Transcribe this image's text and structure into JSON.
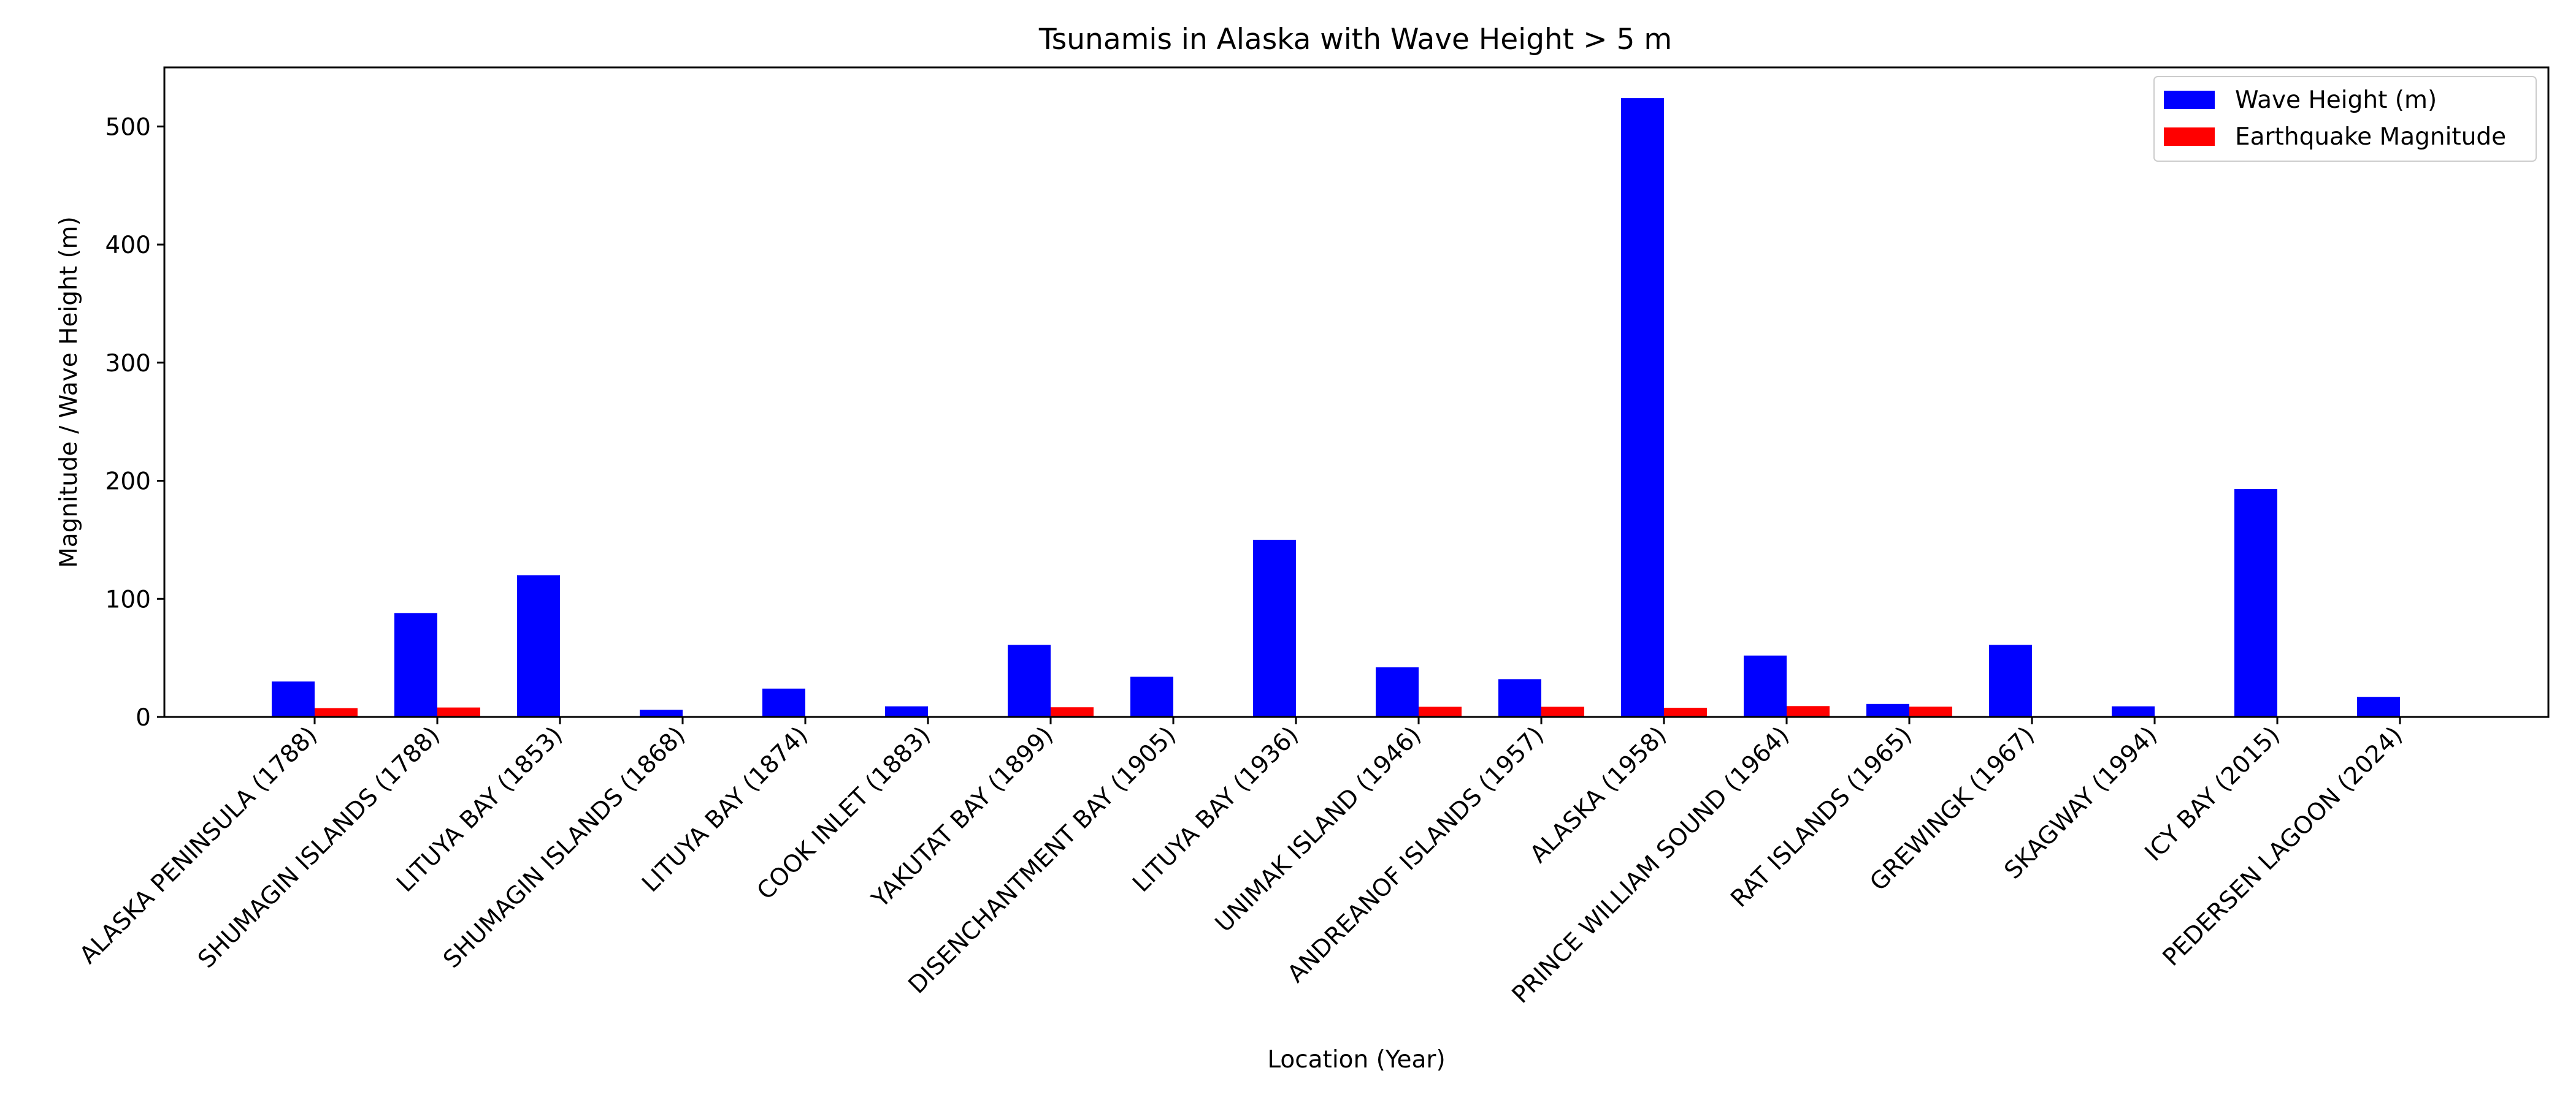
{
  "chart_data": {
    "type": "bar",
    "title": "Tsunamis in Alaska with Wave Height > 5 m",
    "xlabel": "Location (Year)",
    "ylabel": "Magnitude / Wave Height (m)",
    "ylim": [
      0,
      550
    ],
    "yticks": [
      0,
      100,
      200,
      300,
      400,
      500
    ],
    "categories": [
      "ALASKA PENINSULA (1788)",
      "SHUMAGIN ISLANDS (1788)",
      "LITUYA BAY (1853)",
      "SHUMAGIN ISLANDS (1868)",
      "LITUYA BAY (1874)",
      "COOK INLET (1883)",
      "YAKUTAT BAY (1899)",
      "DISENCHANTMENT BAY (1905)",
      "LITUYA BAY (1936)",
      "UNIMAK ISLAND (1946)",
      "ANDREANOF ISLANDS (1957)",
      "ALASKA (1958)",
      "PRINCE WILLIAM SOUND (1964)",
      "RAT ISLANDS (1965)",
      "GREWINGK (1967)",
      "SKAGWAY (1994)",
      "ICY BAY (2015)",
      "PEDERSEN LAGOON (2024)"
    ],
    "series": [
      {
        "name": "Wave Height (m)",
        "color": "#0000ff",
        "values": [
          30,
          88,
          120,
          6,
          24,
          9,
          61,
          34,
          150,
          42,
          32,
          524,
          52,
          11,
          61,
          9,
          193,
          17
        ]
      },
      {
        "name": "Earthquake Magnitude",
        "color": "#ff0000",
        "values": [
          7.5,
          8.0,
          null,
          null,
          null,
          null,
          8.2,
          null,
          null,
          8.6,
          8.6,
          7.8,
          9.2,
          8.7,
          null,
          null,
          null,
          null
        ]
      }
    ],
    "legend_position": "top-right",
    "grid": false
  }
}
